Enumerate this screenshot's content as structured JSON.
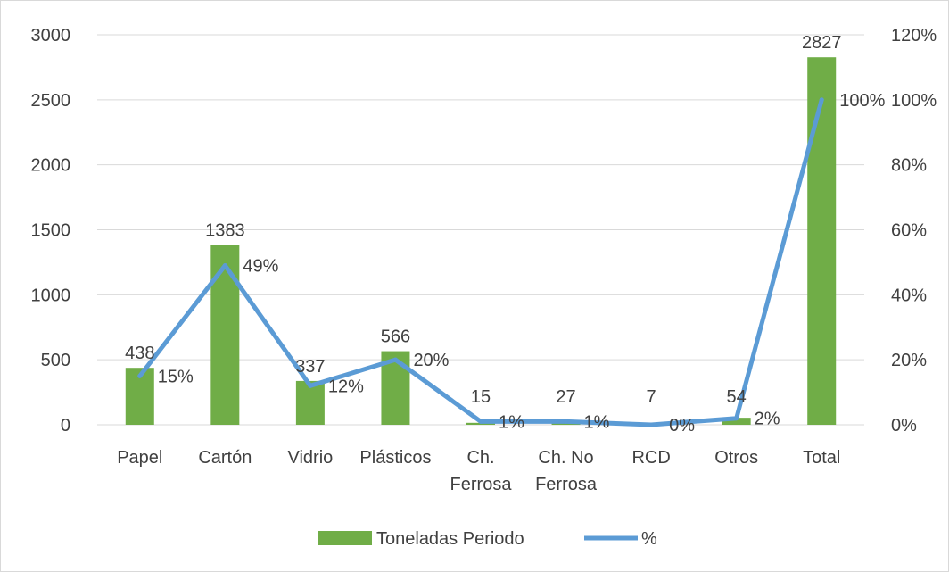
{
  "chart_data": {
    "type": "bar",
    "categories": [
      "Papel",
      "Cartón",
      "Vidrio",
      "Plásticos",
      "Ch. Ferrosa",
      "Ch. No Ferrosa",
      "RCD",
      "Otros",
      "Total"
    ],
    "category_lines": [
      [
        "Papel"
      ],
      [
        "Cartón"
      ],
      [
        "Vidrio"
      ],
      [
        "Plásticos"
      ],
      [
        "Ch.",
        "Ferrosa"
      ],
      [
        "Ch. No",
        "Ferrosa"
      ],
      [
        "RCD"
      ],
      [
        "Otros"
      ],
      [
        "Total"
      ]
    ],
    "series": [
      {
        "name": "Toneladas Periodo",
        "type": "bar",
        "axis": "left",
        "color": "#70ad47",
        "values": [
          438,
          1383,
          337,
          566,
          15,
          27,
          7,
          54,
          2827
        ],
        "labels": [
          "438",
          "1383",
          "337",
          "566",
          "15",
          "27",
          "7",
          "54",
          "2827"
        ]
      },
      {
        "name": "%",
        "type": "line",
        "axis": "right",
        "color": "#5b9bd5",
        "values": [
          15,
          49,
          12,
          20,
          1,
          1,
          0,
          2,
          100
        ],
        "labels": [
          "15%",
          "49%",
          "12%",
          "20%",
          "1%",
          "1%",
          "0%",
          "2%",
          "100%"
        ]
      }
    ],
    "y_left": {
      "min": 0,
      "max": 3000,
      "ticks": [
        "0",
        "500",
        "1000",
        "1500",
        "2000",
        "2500",
        "3000"
      ]
    },
    "y_right": {
      "min": 0,
      "max": 120,
      "ticks": [
        "0%",
        "20%",
        "40%",
        "60%",
        "80%",
        "100%",
        "120%"
      ]
    },
    "grid": true,
    "legend_position": "bottom",
    "title": "",
    "xlabel": "",
    "ylabel": ""
  }
}
